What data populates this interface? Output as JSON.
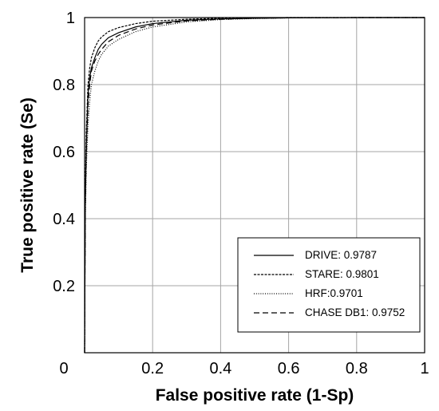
{
  "chart_data": {
    "type": "line",
    "title": "",
    "xlabel": "False positive rate (1-Sp)",
    "ylabel": "True positive rate (Se)",
    "xlim": [
      0,
      1
    ],
    "ylim": [
      0,
      1
    ],
    "x_ticks": [
      0,
      0.2,
      0.4,
      0.6,
      0.8,
      1
    ],
    "x_tick_labels": [
      "0",
      "0.2",
      "0.4",
      "0.6",
      "0.8",
      "1"
    ],
    "y_ticks": [
      0.2,
      0.4,
      0.6,
      0.8,
      1
    ],
    "y_tick_labels": [
      "0.2",
      "0.4",
      "0.6",
      "0.8",
      "1"
    ],
    "grid": true,
    "legend_position": "bottom-right",
    "series": [
      {
        "name": "DRIVE: 0.9787",
        "dash": "solid",
        "x": [
          0,
          0.002,
          0.005,
          0.01,
          0.015,
          0.02,
          0.03,
          0.04,
          0.05,
          0.07,
          0.1,
          0.15,
          0.2,
          0.3,
          0.4,
          0.5,
          0.6,
          0.8,
          1.0
        ],
        "y": [
          0,
          0.45,
          0.62,
          0.77,
          0.82,
          0.85,
          0.88,
          0.905,
          0.92,
          0.94,
          0.955,
          0.972,
          0.982,
          0.992,
          0.996,
          0.998,
          0.999,
          1.0,
          1.0
        ]
      },
      {
        "name": "STARE: 0.9801",
        "dash": "dense",
        "x": [
          0,
          0.002,
          0.005,
          0.01,
          0.015,
          0.02,
          0.03,
          0.04,
          0.05,
          0.07,
          0.1,
          0.15,
          0.2,
          0.3,
          0.4,
          0.5,
          0.6,
          0.8,
          1.0
        ],
        "y": [
          0,
          0.5,
          0.66,
          0.8,
          0.85,
          0.88,
          0.91,
          0.93,
          0.942,
          0.958,
          0.97,
          0.982,
          0.989,
          0.995,
          0.998,
          0.999,
          1.0,
          1.0,
          1.0
        ]
      },
      {
        "name": "HRF:0.9701",
        "dash": "dotted",
        "x": [
          0,
          0.002,
          0.005,
          0.01,
          0.015,
          0.02,
          0.03,
          0.04,
          0.05,
          0.07,
          0.1,
          0.15,
          0.2,
          0.3,
          0.4,
          0.5,
          0.6,
          0.8,
          1.0
        ],
        "y": [
          0,
          0.4,
          0.55,
          0.68,
          0.75,
          0.8,
          0.84,
          0.87,
          0.89,
          0.915,
          0.935,
          0.958,
          0.972,
          0.987,
          0.994,
          0.997,
          0.999,
          1.0,
          1.0
        ]
      },
      {
        "name": "CHASE DB1: 0.9752",
        "dash": "dashed",
        "x": [
          0,
          0.002,
          0.005,
          0.01,
          0.015,
          0.02,
          0.03,
          0.04,
          0.05,
          0.07,
          0.1,
          0.15,
          0.2,
          0.3,
          0.4,
          0.5,
          0.6,
          0.8,
          1.0
        ],
        "y": [
          0,
          0.42,
          0.6,
          0.74,
          0.8,
          0.84,
          0.87,
          0.89,
          0.905,
          0.928,
          0.947,
          0.966,
          0.978,
          0.99,
          0.995,
          0.998,
          0.999,
          1.0,
          1.0
        ]
      }
    ]
  }
}
